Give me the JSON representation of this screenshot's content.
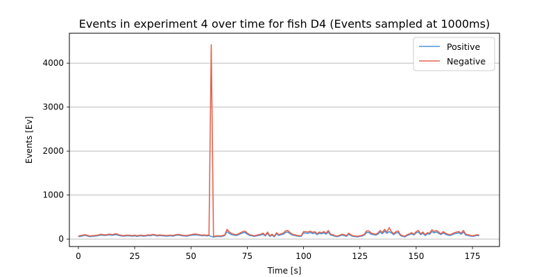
{
  "chart_data": {
    "type": "line",
    "title": "Events in experiment 4 over time for fish D4 (Events sampled at 1000ms)",
    "xlabel": "Time [s]",
    "ylabel": "Events [Ev]",
    "xlim": [
      -4,
      187
    ],
    "ylim": [
      -170,
      4680
    ],
    "xticks": [
      0,
      25,
      50,
      75,
      100,
      125,
      150,
      175
    ],
    "yticks": [
      0,
      1000,
      2000,
      3000,
      4000
    ],
    "grid": "y-major",
    "legend_position": "top-right",
    "x": [
      0,
      1,
      2,
      3,
      4,
      5,
      6,
      7,
      8,
      9,
      10,
      11,
      12,
      13,
      14,
      15,
      16,
      17,
      18,
      19,
      20,
      21,
      22,
      23,
      24,
      25,
      26,
      27,
      28,
      29,
      30,
      31,
      32,
      33,
      34,
      35,
      36,
      37,
      38,
      39,
      40,
      41,
      42,
      43,
      44,
      45,
      46,
      47,
      48,
      49,
      50,
      51,
      52,
      53,
      54,
      55,
      56,
      57,
      58,
      59,
      60,
      61,
      62,
      63,
      64,
      65,
      66,
      67,
      68,
      69,
      70,
      71,
      72,
      73,
      74,
      75,
      76,
      77,
      78,
      79,
      80,
      81,
      82,
      83,
      84,
      85,
      86,
      87,
      88,
      89,
      90,
      91,
      92,
      93,
      94,
      95,
      96,
      97,
      98,
      99,
      100,
      101,
      102,
      103,
      104,
      105,
      106,
      107,
      108,
      109,
      110,
      111,
      112,
      113,
      114,
      115,
      116,
      117,
      118,
      119,
      120,
      121,
      122,
      123,
      124,
      125,
      126,
      127,
      128,
      129,
      130,
      131,
      132,
      133,
      134,
      135,
      136,
      137,
      138,
      139,
      140,
      141,
      142,
      143,
      144,
      145,
      146,
      147,
      148,
      149,
      150,
      151,
      152,
      153,
      154,
      155,
      156,
      157,
      158,
      159,
      160,
      161,
      162,
      163,
      164,
      165,
      166,
      167,
      168,
      169,
      170,
      171,
      172,
      173,
      174,
      175,
      176,
      177,
      178
    ],
    "series": [
      {
        "name": "Positive",
        "color": "#4c93db",
        "values": [
          55,
          60,
          75,
          85,
          70,
          55,
          60,
          65,
          70,
          80,
          90,
          85,
          80,
          90,
          95,
          85,
          95,
          100,
          80,
          70,
          65,
          70,
          75,
          70,
          65,
          75,
          60,
          70,
          75,
          65,
          70,
          80,
          75,
          90,
          85,
          70,
          80,
          75,
          70,
          65,
          70,
          75,
          65,
          80,
          90,
          85,
          75,
          70,
          65,
          75,
          85,
          90,
          95,
          90,
          80,
          75,
          80,
          70,
          80,
          60,
          45,
          55,
          60,
          55,
          65,
          80,
          170,
          130,
          100,
          90,
          80,
          95,
          120,
          140,
          150,
          110,
          80,
          75,
          60,
          70,
          80,
          90,
          110,
          70,
          130,
          60,
          90,
          50,
          120,
          80,
          100,
          110,
          150,
          160,
          120,
          90,
          80,
          70,
          60,
          65,
          140,
          135,
          130,
          150,
          125,
          140,
          100,
          130,
          120,
          140,
          110,
          160,
          90,
          80,
          60,
          55,
          70,
          90,
          80,
          60,
          110,
          80,
          60,
          55,
          50,
          60,
          70,
          90,
          150,
          150,
          110,
          100,
          90,
          110,
          160,
          120,
          180,
          130,
          170,
          140,
          100,
          140,
          150,
          80,
          60,
          50,
          80,
          100,
          120,
          90,
          140,
          160,
          100,
          130,
          80,
          120,
          110,
          170,
          140,
          160,
          130,
          100,
          140,
          110,
          90,
          80,
          100,
          120,
          130,
          140,
          110,
          160,
          90,
          80,
          70,
          60,
          70,
          80,
          75
        ]
      },
      {
        "name": "Negative",
        "color": "#e2644f",
        "values": [
          70,
          80,
          90,
          100,
          85,
          70,
          75,
          80,
          85,
          95,
          110,
          100,
          95,
          105,
          110,
          100,
          115,
          120,
          95,
          85,
          80,
          85,
          90,
          85,
          80,
          90,
          75,
          85,
          90,
          80,
          85,
          95,
          90,
          105,
          100,
          85,
          95,
          90,
          85,
          80,
          85,
          90,
          80,
          95,
          105,
          100,
          90,
          85,
          80,
          90,
          100,
          110,
          115,
          105,
          95,
          90,
          95,
          85,
          95,
          4420,
          60,
          70,
          75,
          70,
          80,
          95,
          220,
          165,
          125,
          110,
          100,
          115,
          145,
          170,
          180,
          135,
          100,
          90,
          75,
          85,
          100,
          110,
          135,
          85,
          160,
          75,
          110,
          65,
          145,
          100,
          120,
          135,
          185,
          195,
          145,
          110,
          100,
          85,
          75,
          80,
          170,
          165,
          160,
          180,
          150,
          170,
          120,
          160,
          145,
          170,
          135,
          195,
          110,
          100,
          75,
          70,
          85,
          110,
          100,
          75,
          135,
          100,
          75,
          70,
          65,
          75,
          85,
          110,
          185,
          185,
          135,
          120,
          110,
          135,
          195,
          150,
          220,
          160,
          260,
          170,
          120,
          170,
          185,
          100,
          75,
          65,
          100,
          120,
          145,
          110,
          170,
          195,
          120,
          160,
          100,
          145,
          135,
          210,
          170,
          195,
          160,
          120,
          170,
          135,
          110,
          100,
          120,
          145,
          160,
          170,
          135,
          195,
          110,
          100,
          85,
          75,
          85,
          100,
          90
        ]
      }
    ]
  }
}
